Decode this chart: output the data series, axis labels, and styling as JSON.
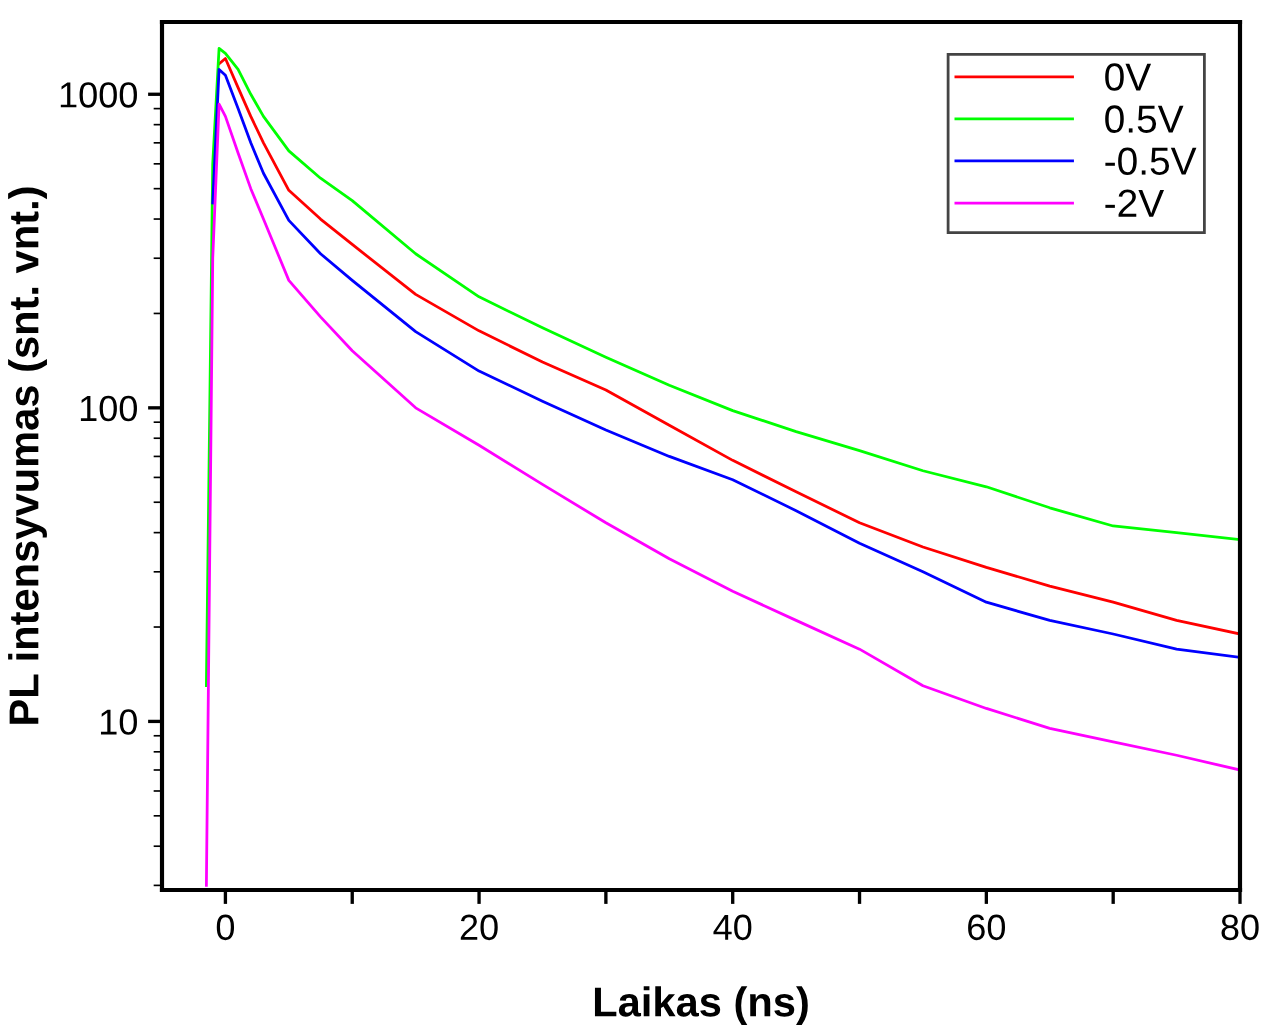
{
  "chart_data": {
    "type": "line",
    "xlabel": "Laikas (ns)",
    "ylabel": "PL intensyvumas (snt. vnt.)",
    "x": [
      -1.5,
      -1,
      -0.5,
      0,
      1,
      2,
      3,
      5,
      7.5,
      10,
      15,
      20,
      25,
      30,
      35,
      40,
      45,
      50,
      55,
      60,
      65,
      70,
      75,
      80
    ],
    "series": [
      {
        "name": "0V",
        "color": "#ff0000",
        "values": [
          null,
          null,
          1250,
          1300,
          1050,
          850,
          700,
          494,
          400,
          332,
          230,
          176,
          140,
          114,
          88,
          68,
          54,
          43,
          36,
          31,
          27,
          24,
          21,
          19
        ]
      },
      {
        "name": "0.5V",
        "color": "#00ff00",
        "values": [
          13,
          600,
          1400,
          1350,
          1200,
          1000,
          850,
          660,
          540,
          458,
          310,
          226,
          180,
          145,
          118,
          98,
          84,
          73,
          63,
          56,
          48,
          42,
          40,
          38
        ]
      },
      {
        "name": "-0.5V",
        "color": "#0000ff",
        "values": [
          null,
          450,
          1200,
          1150,
          900,
          700,
          560,
          396,
          310,
          255,
          175,
          131,
          105,
          85,
          70,
          59,
          47,
          37,
          30,
          24,
          21,
          19,
          17,
          16
        ]
      },
      {
        "name": "-2V",
        "color": "#ff00ff",
        "values": [
          3,
          300,
          930,
          850,
          650,
          500,
          400,
          255,
          195,
          152,
          100,
          76,
          57,
          43,
          33,
          26,
          21,
          17,
          13,
          11,
          9.5,
          8.6,
          7.8,
          7
        ]
      }
    ],
    "log": "y",
    "xlim": [
      -5,
      80
    ],
    "ylim": [
      2.9,
      1700
    ],
    "xticks": [
      0,
      {
        "value": 10,
        "label": null
      },
      20,
      {
        "value": 30,
        "label": null
      },
      40,
      {
        "value": 50,
        "label": null
      },
      60,
      {
        "value": 70,
        "label": null
      },
      80
    ],
    "yticks": [
      10,
      100,
      1000
    ],
    "legend": "top right",
    "grid": false,
    "marker": "none",
    "line_style": "solid"
  }
}
